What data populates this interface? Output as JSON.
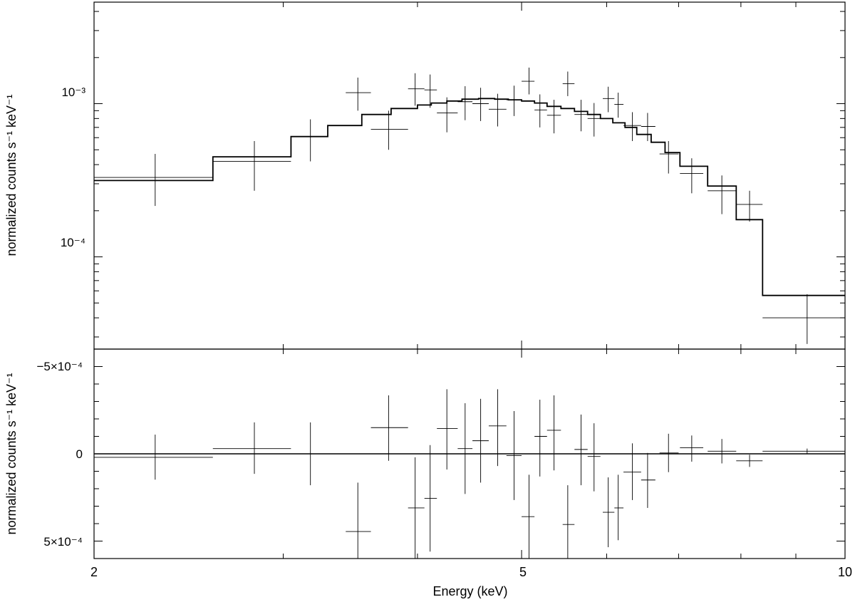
{
  "chart_data": [
    {
      "type": "scatter",
      "panel": "spectrum",
      "x_scale": "log",
      "y_scale": "log",
      "xlim": [
        2,
        10
      ],
      "ylim": [
        2.5e-05,
        0.0046
      ],
      "ylabel": "normalized counts s⁻¹ keV⁻¹",
      "y_ticklabels": [
        "10⁻³",
        "10⁻⁴"
      ],
      "grid": false,
      "series": [
        {
          "kind": "data-with-errorbars",
          "points": [
            {
              "e": 2.28,
              "elo": 2.0,
              "ehi": 2.58,
              "y": 0.00033,
              "ylo": 0.000215,
              "yhi": 0.00047
            },
            {
              "e": 2.82,
              "elo": 2.58,
              "ehi": 3.05,
              "y": 0.00042,
              "ylo": 0.00027,
              "yhi": 0.00057
            },
            {
              "e": 3.18,
              "elo": 3.18,
              "ehi": 3.18,
              "y": 0.0006,
              "ylo": 0.00042,
              "yhi": 0.00079
            },
            {
              "e": 3.52,
              "elo": 3.43,
              "ehi": 3.62,
              "y": 0.00118,
              "ylo": 0.0009,
              "yhi": 0.00148
            },
            {
              "e": 3.76,
              "elo": 3.62,
              "ehi": 3.92,
              "y": 0.00068,
              "ylo": 0.0005,
              "yhi": 0.0009
            },
            {
              "e": 3.98,
              "elo": 3.92,
              "ehi": 4.06,
              "y": 0.00125,
              "ylo": 0.00097,
              "yhi": 0.00158
            },
            {
              "e": 4.11,
              "elo": 4.06,
              "ehi": 4.17,
              "y": 0.00123,
              "ylo": 0.00094,
              "yhi": 0.00155
            },
            {
              "e": 4.26,
              "elo": 4.17,
              "ehi": 4.36,
              "y": 0.00087,
              "ylo": 0.00065,
              "yhi": 0.0011
            },
            {
              "e": 4.43,
              "elo": 4.36,
              "ehi": 4.5,
              "y": 0.00103,
              "ylo": 0.00078,
              "yhi": 0.0013
            },
            {
              "e": 4.58,
              "elo": 4.5,
              "ehi": 4.66,
              "y": 0.001,
              "ylo": 0.00077,
              "yhi": 0.00127
            },
            {
              "e": 4.75,
              "elo": 4.66,
              "ehi": 4.84,
              "y": 0.00092,
              "ylo": 0.00071,
              "yhi": 0.00116
            },
            {
              "e": 4.92,
              "elo": 4.84,
              "ehi": 5.0,
              "y": 0.00106,
              "ylo": 0.00083,
              "yhi": 0.00131
            },
            {
              "e": 5.08,
              "elo": 5.0,
              "ehi": 5.14,
              "y": 0.0014,
              "ylo": 0.00115,
              "yhi": 0.00172
            },
            {
              "e": 5.2,
              "elo": 5.14,
              "ehi": 5.28,
              "y": 0.00091,
              "ylo": 0.0007,
              "yhi": 0.00115
            },
            {
              "e": 5.36,
              "elo": 5.28,
              "ehi": 5.44,
              "y": 0.00084,
              "ylo": 0.00064,
              "yhi": 0.00106
            },
            {
              "e": 5.52,
              "elo": 5.46,
              "ehi": 5.6,
              "y": 0.00135,
              "ylo": 0.00112,
              "yhi": 0.00162
            },
            {
              "e": 5.68,
              "elo": 5.6,
              "ehi": 5.76,
              "y": 0.00085,
              "ylo": 0.00066,
              "yhi": 0.00106
            },
            {
              "e": 5.84,
              "elo": 5.76,
              "ehi": 5.92,
              "y": 0.0008,
              "ylo": 0.00061,
              "yhi": 0.00101
            },
            {
              "e": 6.02,
              "elo": 5.95,
              "ehi": 6.1,
              "y": 0.00108,
              "ylo": 0.00088,
              "yhi": 0.00129
            },
            {
              "e": 6.15,
              "elo": 6.1,
              "ehi": 6.22,
              "y": 0.00099,
              "ylo": 0.00081,
              "yhi": 0.00118
            },
            {
              "e": 6.34,
              "elo": 6.22,
              "ehi": 6.46,
              "y": 0.00072,
              "ylo": 0.00057,
              "yhi": 0.00088
            },
            {
              "e": 6.55,
              "elo": 6.46,
              "ehi": 6.66,
              "y": 0.00071,
              "ylo": 0.00057,
              "yhi": 0.00087
            },
            {
              "e": 6.85,
              "elo": 6.72,
              "ehi": 7.0,
              "y": 0.00047,
              "ylo": 0.00035,
              "yhi": 0.00057
            },
            {
              "e": 7.2,
              "elo": 7.02,
              "ehi": 7.38,
              "y": 0.00035,
              "ylo": 0.00026,
              "yhi": 0.00044
            },
            {
              "e": 7.68,
              "elo": 7.45,
              "ehi": 7.92,
              "y": 0.00027,
              "ylo": 0.00019,
              "yhi": 0.00034
            },
            {
              "e": 8.15,
              "elo": 7.92,
              "ehi": 8.38,
              "y": 0.00022,
              "ylo": 0.00017,
              "yhi": 0.00027
            },
            {
              "e": 9.22,
              "elo": 8.38,
              "ehi": 10.0,
              "y": 4e-05,
              "ylo": 2.7e-05,
              "yhi": 5.7e-05
            }
          ]
        },
        {
          "kind": "model-step",
          "edges": [
            2.0,
            2.58,
            3.05,
            3.3,
            3.55,
            3.78,
            4.0,
            4.12,
            4.26,
            4.4,
            4.56,
            4.72,
            4.86,
            5.0,
            5.14,
            5.28,
            5.44,
            5.6,
            5.76,
            5.92,
            6.08,
            6.24,
            6.4,
            6.6,
            6.8,
            7.02,
            7.45,
            7.92,
            8.38,
            10.0
          ],
          "values": [
            0.000315,
            0.00045,
            0.00061,
            0.00072,
            0.00085,
            0.00093,
            0.00098,
            0.00101,
            0.00104,
            0.00107,
            0.00108,
            0.00107,
            0.00106,
            0.00104,
            0.00101,
            0.00096,
            0.00093,
            0.00089,
            0.00085,
            0.0008,
            0.00075,
            0.0007,
            0.00063,
            0.00056,
            0.00048,
            0.00039,
            0.00029,
            0.000175,
            5.6e-05
          ]
        }
      ]
    },
    {
      "type": "scatter",
      "panel": "residuals",
      "x_scale": "log",
      "xlim": [
        2,
        10
      ],
      "ylim": [
        0.0006,
        -0.0006
      ],
      "y_inverted": true,
      "xlabel": "Energy (keV)",
      "ylabel": "normalized counts s⁻¹ keV⁻¹",
      "x_ticklabels": [
        "2",
        "5",
        "10"
      ],
      "y_ticklabels": [
        "−5×10⁻⁴",
        "0",
        "5×10⁻⁴"
      ],
      "zero_line": 0,
      "grid": false,
      "points": [
        {
          "e": 2.28,
          "elo": 2.0,
          "ehi": 2.58,
          "y": 2e-05,
          "ylo": -0.00011,
          "yhi": 0.000148
        },
        {
          "e": 2.82,
          "elo": 2.58,
          "ehi": 3.05,
          "y": -3e-05,
          "ylo": -0.00018,
          "yhi": 0.000115
        },
        {
          "e": 3.18,
          "elo": 3.18,
          "ehi": 3.18,
          "y": 0.0,
          "ylo": -0.00018,
          "yhi": 0.00018
        },
        {
          "e": 3.52,
          "elo": 3.43,
          "ehi": 3.62,
          "y": 0.000445,
          "ylo": 0.000165,
          "yhi": 0.0006
        },
        {
          "e": 3.76,
          "elo": 3.62,
          "ehi": 3.92,
          "y": -0.00015,
          "ylo": -0.000335,
          "yhi": 4e-05
        },
        {
          "e": 3.98,
          "elo": 3.92,
          "ehi": 4.06,
          "y": 0.00031,
          "ylo": 2e-05,
          "yhi": 0.0006
        },
        {
          "e": 4.11,
          "elo": 4.06,
          "ehi": 4.17,
          "y": 0.000255,
          "ylo": -5e-05,
          "yhi": 0.00056
        },
        {
          "e": 4.26,
          "elo": 4.17,
          "ehi": 4.36,
          "y": -0.000145,
          "ylo": -0.00037,
          "yhi": 9e-05
        },
        {
          "e": 4.43,
          "elo": 4.36,
          "ehi": 4.5,
          "y": -3e-05,
          "ylo": -0.00029,
          "yhi": 0.00023
        },
        {
          "e": 4.58,
          "elo": 4.5,
          "ehi": 4.66,
          "y": -7.5e-05,
          "ylo": -0.000315,
          "yhi": 0.000165
        },
        {
          "e": 4.75,
          "elo": 4.66,
          "ehi": 4.84,
          "y": -0.00016,
          "ylo": -0.00037,
          "yhi": 7e-05
        },
        {
          "e": 4.92,
          "elo": 4.84,
          "ehi": 5.0,
          "y": 1e-05,
          "ylo": -0.000245,
          "yhi": 0.000265
        },
        {
          "e": 5.08,
          "elo": 5.0,
          "ehi": 5.14,
          "y": 0.00036,
          "ylo": 0.00012,
          "yhi": 0.0006
        },
        {
          "e": 5.2,
          "elo": 5.14,
          "ehi": 5.28,
          "y": -0.0001,
          "ylo": -0.00031,
          "yhi": 0.00013
        },
        {
          "e": 5.36,
          "elo": 5.28,
          "ehi": 5.44,
          "y": -0.000135,
          "ylo": -0.000335,
          "yhi": 9.5e-05
        },
        {
          "e": 5.52,
          "elo": 5.46,
          "ehi": 5.6,
          "y": 0.000405,
          "ylo": 0.00018,
          "yhi": 0.0006
        },
        {
          "e": 5.68,
          "elo": 5.6,
          "ehi": 5.76,
          "y": -2.5e-05,
          "ylo": -0.000225,
          "yhi": 0.00018
        },
        {
          "e": 5.84,
          "elo": 5.76,
          "ehi": 5.92,
          "y": 1.5e-05,
          "ylo": -0.000175,
          "yhi": 0.000215
        },
        {
          "e": 6.02,
          "elo": 5.95,
          "ehi": 6.1,
          "y": 0.000335,
          "ylo": 0.000135,
          "yhi": 0.000535
        },
        {
          "e": 6.15,
          "elo": 6.1,
          "ehi": 6.22,
          "y": 0.00031,
          "ylo": 0.00012,
          "yhi": 0.000495
        },
        {
          "e": 6.34,
          "elo": 6.22,
          "ehi": 6.46,
          "y": 0.000105,
          "ylo": -6e-05,
          "yhi": 0.000265
        },
        {
          "e": 6.55,
          "elo": 6.46,
          "ehi": 6.66,
          "y": 0.00015,
          "ylo": -5e-06,
          "yhi": 0.00031
        },
        {
          "e": 6.85,
          "elo": 6.72,
          "ehi": 7.0,
          "y": -5e-06,
          "ylo": -0.000115,
          "yhi": 0.000105
        },
        {
          "e": 7.2,
          "elo": 7.02,
          "ehi": 7.38,
          "y": -3.5e-05,
          "ylo": -0.000105,
          "yhi": 4.5e-05
        },
        {
          "e": 7.68,
          "elo": 7.45,
          "ehi": 7.92,
          "y": -1.5e-05,
          "ylo": -8.5e-05,
          "yhi": 5.5e-05
        },
        {
          "e": 8.15,
          "elo": 7.92,
          "ehi": 8.38,
          "y": 4e-05,
          "ylo": 5e-06,
          "yhi": 7.5e-05
        },
        {
          "e": 9.22,
          "elo": 8.38,
          "ehi": 10.0,
          "y": -1.5e-05,
          "ylo": -3e-05,
          "yhi": 0.0
        }
      ]
    }
  ]
}
